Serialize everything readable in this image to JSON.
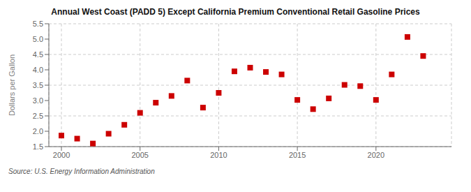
{
  "chart_data": {
    "type": "scatter",
    "title": "Annual West Coast (PADD 5) Except California Premium Conventional Retail Gasoline Prices",
    "y_label": "Dollars per Gallon",
    "annotations": [
      "Source: U.S. Energy Information Administration"
    ],
    "x": [
      2000,
      2001,
      2002,
      2003,
      2004,
      2005,
      2006,
      2007,
      2008,
      2009,
      2010,
      2011,
      2012,
      2013,
      2014,
      2015,
      2016,
      2017,
      2018,
      2019,
      2020,
      2021,
      2022,
      2023
    ],
    "values": [
      1.86,
      1.76,
      1.6,
      1.92,
      2.21,
      2.6,
      2.93,
      3.15,
      3.65,
      2.77,
      3.25,
      3.95,
      4.07,
      3.93,
      3.85,
      3.02,
      2.72,
      3.07,
      3.51,
      3.47,
      3.02,
      3.85,
      5.07,
      4.45
    ],
    "color": "#cc0000",
    "marker": "square",
    "grid": true,
    "xlim": [
      1999.2,
      2024.8
    ],
    "xticks": [
      2000,
      2005,
      2010,
      2015,
      2020
    ],
    "ylim": [
      1.5,
      5.5
    ],
    "yticks": [
      1.5,
      {
        "value": 2.0,
        "label": "2.0"
      },
      2.5,
      {
        "value": 3.0,
        "label": "3.0"
      },
      3.5,
      {
        "value": 4.0,
        "label": "4.0"
      },
      4.5,
      {
        "value": 5.0,
        "label": "5.0"
      },
      5.5
    ]
  }
}
